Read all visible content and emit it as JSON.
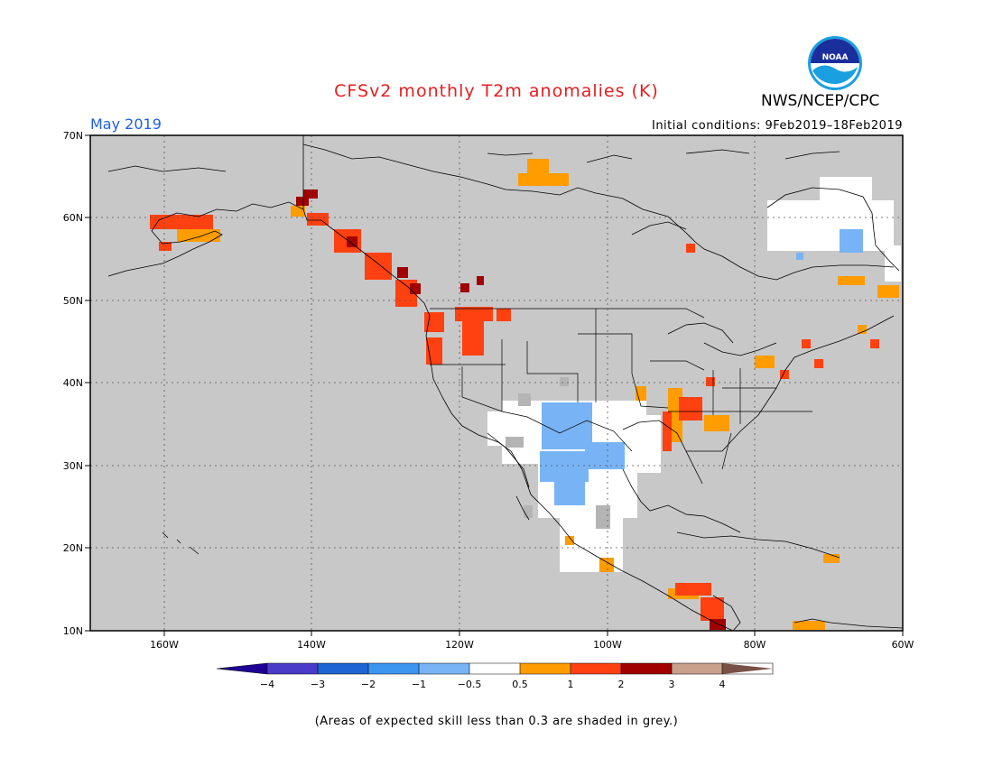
{
  "header": {
    "title": "CFSv2 monthly T2m anomalies (K)",
    "agency": "NWS/NCEP/CPC",
    "logo_text": "NOAA",
    "month": "May 2019",
    "initial_conditions": "Initial conditions: 9Feb2019–18Feb2019"
  },
  "map": {
    "lat_labels": [
      "70N",
      "60N",
      "50N",
      "40N",
      "30N",
      "20N",
      "10N"
    ],
    "lon_labels": [
      "160W",
      "140W",
      "120W",
      "100W",
      "80W",
      "60W"
    ],
    "lon_range": [
      -170,
      -60
    ],
    "lat_range": [
      10,
      70
    ],
    "background_color": "#c8c8c8"
  },
  "colorbar": {
    "labels": [
      "−4",
      "−3",
      "−2",
      "−1",
      "−0.5",
      "0.5",
      "1",
      "2",
      "3",
      "4"
    ],
    "colors": [
      "#1e0096",
      "#4a3cc8",
      "#1e64d2",
      "#3c96f0",
      "#78b4f5",
      "#ffffff",
      "#ff9c00",
      "#ff4010",
      "#a00000",
      "#c8a08c",
      "#785046"
    ]
  },
  "footnote": "(Areas of expected skill less than 0.3 are shaded in grey.)"
}
